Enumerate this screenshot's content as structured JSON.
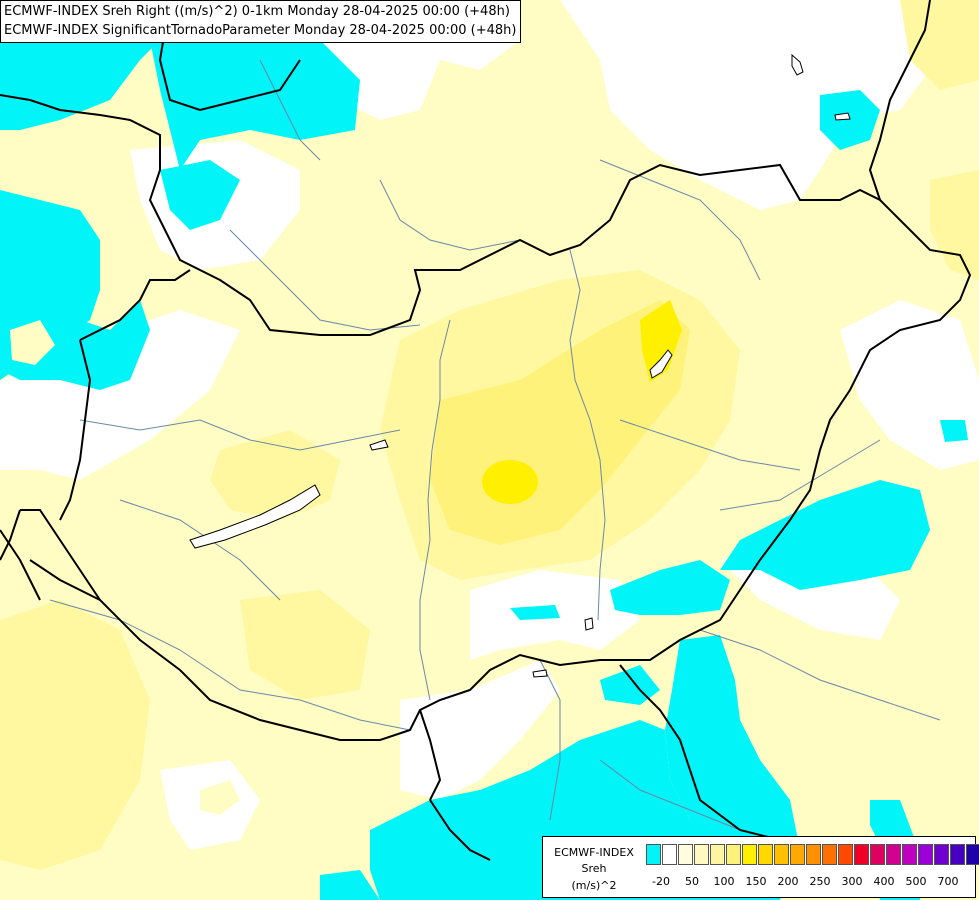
{
  "header": {
    "title_line_1": "ECMWF-INDEX Sreh Right ((m/s)^2) 0-1km Monday 28-04-2025 00:00 (+48h)",
    "title_line_2": "ECMWF-INDEX SignificantTornadoParameter Monday 28-04-2025 00:00 (+48h)"
  },
  "legend": {
    "line_1": "ECMWF-INDEX",
    "line_2": "Sreh",
    "line_3": "(m/s)^2",
    "swatches": [
      "#00f4f8",
      "#ffffff",
      "#fffce0",
      "#fff8c0",
      "#fff5a0",
      "#fff27a",
      "#fff000",
      "#ffd800",
      "#ffc000",
      "#ffa800",
      "#ff9000",
      "#ff7000",
      "#ff4a00",
      "#f00028",
      "#e00060",
      "#d00090",
      "#c000c0",
      "#9c00d8",
      "#7000d0",
      "#4800c0",
      "#2000a8",
      "#000080"
    ],
    "ticks": [
      "-20",
      "50",
      "100",
      "150",
      "200",
      "250",
      "300",
      "400",
      "500",
      "700"
    ]
  },
  "colors": {
    "cyan": "#00f4f8",
    "pale_yellow": "#fffcc4",
    "light_yellow": "#fff8a0",
    "yellow": "#fff27a",
    "bright_yellow": "#fff000",
    "border": "#000000",
    "river": "#6a88a8"
  }
}
